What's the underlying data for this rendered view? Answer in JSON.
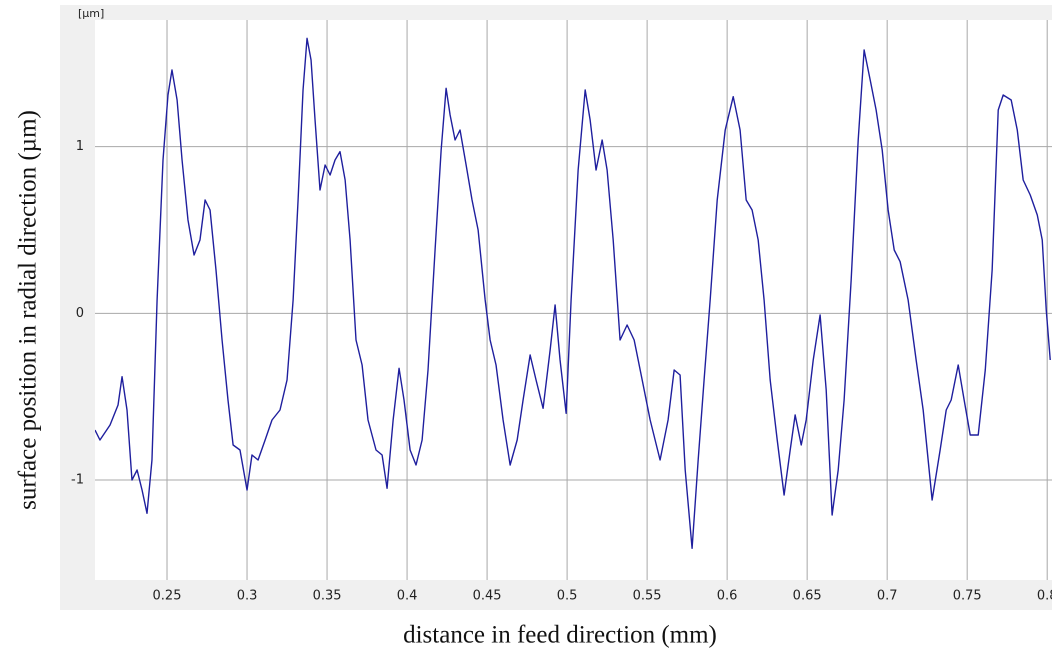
{
  "chart_data": {
    "type": "line",
    "unit_label": "[µm]",
    "x_label": "distance in feed direction (mm)",
    "y_label": "surface position in radial direction (µm)",
    "xlim": [
      0.205,
      0.803
    ],
    "ylim": [
      -1.6,
      1.76
    ],
    "xticks": [
      0.25,
      0.3,
      0.35,
      0.4,
      0.45,
      0.5,
      0.55,
      0.6,
      0.65,
      0.7,
      0.75,
      0.8
    ],
    "yticks": [
      -1,
      0,
      1
    ],
    "grid": true,
    "series": [
      {
        "color": "#1f1f9e",
        "x": [
          0.205,
          0.2081,
          0.2144,
          0.2194,
          0.2219,
          0.225,
          0.2281,
          0.2313,
          0.2344,
          0.2375,
          0.2406,
          0.2438,
          0.2475,
          0.2506,
          0.2531,
          0.2563,
          0.2594,
          0.2631,
          0.2669,
          0.2706,
          0.2738,
          0.2769,
          0.2806,
          0.2844,
          0.2881,
          0.2913,
          0.2956,
          0.3,
          0.3031,
          0.3069,
          0.3113,
          0.3156,
          0.3206,
          0.325,
          0.3288,
          0.3319,
          0.335,
          0.3375,
          0.34,
          0.3425,
          0.3456,
          0.3488,
          0.3519,
          0.355,
          0.3581,
          0.3613,
          0.3644,
          0.3681,
          0.3719,
          0.3756,
          0.3806,
          0.3844,
          0.3875,
          0.3913,
          0.395,
          0.3981,
          0.4019,
          0.4056,
          0.4094,
          0.4131,
          0.4175,
          0.4213,
          0.4244,
          0.4269,
          0.43,
          0.4331,
          0.4369,
          0.4406,
          0.4444,
          0.4488,
          0.4519,
          0.4556,
          0.46,
          0.4644,
          0.4688,
          0.4725,
          0.4769,
          0.4806,
          0.485,
          0.4894,
          0.4925,
          0.4956,
          0.4994,
          0.5025,
          0.5069,
          0.5113,
          0.5144,
          0.5181,
          0.5219,
          0.525,
          0.5288,
          0.5331,
          0.5375,
          0.5419,
          0.5463,
          0.5519,
          0.5581,
          0.5631,
          0.5669,
          0.5706,
          0.5738,
          0.5781,
          0.5819,
          0.5856,
          0.5894,
          0.5938,
          0.5988,
          0.6038,
          0.6081,
          0.6119,
          0.6156,
          0.6194,
          0.6231,
          0.6269,
          0.6313,
          0.6356,
          0.6394,
          0.6425,
          0.6463,
          0.6494,
          0.6538,
          0.6581,
          0.6619,
          0.6656,
          0.6694,
          0.6731,
          0.6775,
          0.6819,
          0.6856,
          0.6894,
          0.6931,
          0.6969,
          0.7006,
          0.7044,
          0.7081,
          0.7131,
          0.7181,
          0.7225,
          0.7281,
          0.7331,
          0.7369,
          0.74,
          0.7444,
          0.7481,
          0.7519,
          0.7569,
          0.7613,
          0.7656,
          0.7694,
          0.7725,
          0.7775,
          0.7813,
          0.785,
          0.7894,
          0.7938,
          0.7969,
          0.7994,
          0.8019
        ],
        "values": [
          -0.7,
          -0.76,
          -0.67,
          -0.55,
          -0.38,
          -0.58,
          -1.0,
          -0.94,
          -1.06,
          -1.2,
          -0.88,
          0.08,
          0.92,
          1.31,
          1.46,
          1.28,
          0.92,
          0.56,
          0.35,
          0.44,
          0.68,
          0.62,
          0.26,
          -0.16,
          -0.52,
          -0.79,
          -0.82,
          -1.06,
          -0.85,
          -0.88,
          -0.76,
          -0.64,
          -0.58,
          -0.4,
          0.08,
          0.68,
          1.34,
          1.65,
          1.52,
          1.16,
          0.74,
          0.89,
          0.83,
          0.92,
          0.97,
          0.8,
          0.44,
          -0.16,
          -0.31,
          -0.64,
          -0.82,
          -0.85,
          -1.05,
          -0.64,
          -0.33,
          -0.52,
          -0.82,
          -0.91,
          -0.76,
          -0.34,
          0.38,
          0.98,
          1.35,
          1.19,
          1.04,
          1.1,
          0.89,
          0.68,
          0.5,
          0.08,
          -0.16,
          -0.31,
          -0.64,
          -0.91,
          -0.76,
          -0.52,
          -0.25,
          -0.4,
          -0.57,
          -0.22,
          0.05,
          -0.28,
          -0.6,
          0.08,
          0.86,
          1.34,
          1.16,
          0.86,
          1.04,
          0.86,
          0.44,
          -0.16,
          -0.07,
          -0.16,
          -0.37,
          -0.64,
          -0.88,
          -0.64,
          -0.34,
          -0.37,
          -0.94,
          -1.41,
          -0.88,
          -0.4,
          0.08,
          0.68,
          1.1,
          1.3,
          1.1,
          0.68,
          0.62,
          0.44,
          0.08,
          -0.4,
          -0.76,
          -1.09,
          -0.82,
          -0.61,
          -0.79,
          -0.64,
          -0.28,
          -0.01,
          -0.46,
          -1.21,
          -0.94,
          -0.52,
          0.2,
          1.04,
          1.58,
          1.4,
          1.22,
          0.98,
          0.62,
          0.38,
          0.31,
          0.08,
          -0.28,
          -0.58,
          -1.12,
          -0.82,
          -0.58,
          -0.52,
          -0.31,
          -0.52,
          -0.73,
          -0.73,
          -0.34,
          0.26,
          1.22,
          1.31,
          1.28,
          1.1,
          0.8,
          0.71,
          0.59,
          0.44,
          0.02,
          -0.28
        ]
      }
    ]
  }
}
